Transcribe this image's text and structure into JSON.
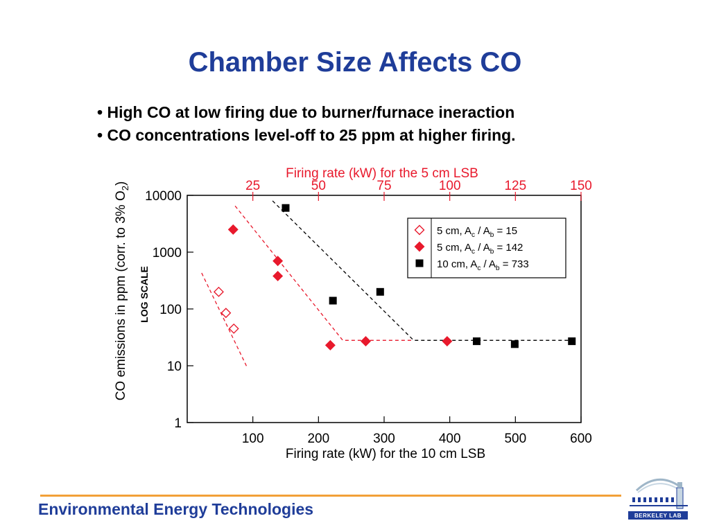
{
  "slide": {
    "title": "Chamber Size Affects CO",
    "bullets": [
      "High CO at low firing due to burner/furnace ineraction",
      "CO concentrations level-off to 25 ppm at higher firing."
    ],
    "footer": "Environmental Energy Technologies",
    "logo_text": "BERKELEY LAB"
  },
  "chart_data": {
    "type": "scatter",
    "title": "",
    "xlabel": "Firing rate (kW) for the 10 cm LSB",
    "x2label": "Firing rate (kW) for the 5 cm LSB",
    "ylabel": "CO emissions in ppm (corr. to 3% O2)",
    "ylabel_base": "CO emissions in ppm (corr. to 3% O",
    "ylabel_sub": "2",
    "ylabel_tail": ")",
    "y_scale_note": "LOG SCALE",
    "xlim": [
      0,
      600
    ],
    "ylim": [
      1,
      10000
    ],
    "y_scale": "log",
    "x_ticks": [
      100,
      200,
      300,
      400,
      500,
      600
    ],
    "y_ticks": [
      1,
      10,
      100,
      1000,
      10000
    ],
    "y_tick_labels": [
      "1",
      "10",
      "100",
      "1000",
      "10000"
    ],
    "x2_ticks": [
      25,
      50,
      75,
      100,
      125,
      150
    ],
    "x2_per_x": 4,
    "legend_position": "top-right",
    "series": [
      {
        "name": "5 cm, Ac / Ab = 15",
        "legend": {
          "base": "5 cm, A",
          "sub1": "c",
          "mid": " / A",
          "sub2": "b",
          "tail": " = 15"
        },
        "marker": "diamond-open",
        "color": "#e8192c",
        "points": [
          [
            48,
            200
          ],
          [
            59,
            85
          ],
          [
            71,
            45
          ]
        ],
        "trend": [
          [
            22,
            430
          ],
          [
            92,
            9
          ]
        ]
      },
      {
        "name": "5 cm, Ac / Ab = 142",
        "legend": {
          "base": "5 cm, A",
          "sub1": "c",
          "mid": " / A",
          "sub2": "b",
          "tail": " = 142"
        },
        "marker": "diamond-filled",
        "color": "#e8192c",
        "points": [
          [
            70,
            2500
          ],
          [
            138,
            700
          ],
          [
            138,
            380
          ],
          [
            218,
            23
          ],
          [
            272,
            27
          ],
          [
            396,
            27
          ]
        ],
        "trend": [
          [
            73,
            6500
          ],
          [
            237,
            28
          ],
          [
            345,
            28
          ]
        ]
      },
      {
        "name": "10 cm, Ac / Ab = 733",
        "legend": {
          "base": "10 cm, A",
          "sub1": "c",
          "mid": " / A",
          "sub2": "b",
          "tail": " = 733"
        },
        "marker": "square-filled",
        "color": "#000000",
        "points": [
          [
            150,
            6000
          ],
          [
            222,
            140
          ],
          [
            294,
            200
          ],
          [
            441,
            27
          ],
          [
            499,
            24
          ],
          [
            586,
            27
          ]
        ],
        "trend": [
          [
            130,
            8000
          ],
          [
            345,
            28
          ],
          [
            590,
            28
          ]
        ]
      }
    ]
  }
}
